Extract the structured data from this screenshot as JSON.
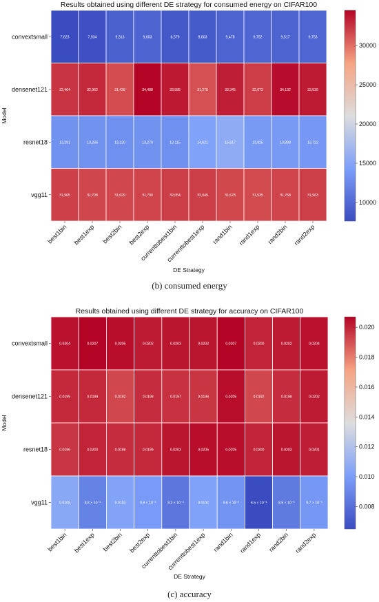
{
  "captions": [
    "(b) consumed energy",
    "(c) accuracy"
  ],
  "chart_data": [
    {
      "type": "heatmap",
      "title": "Results obtained using different DE strategy for consumed energy on CIFAR100",
      "xlabel": "DE Strategy",
      "ylabel": "Model",
      "x_categories": [
        "best1bin",
        "best1exp",
        "best2bin",
        "best2exp",
        "currenttobest1bin",
        "currenttobest1exp",
        "rand1bin",
        "rand1exp",
        "rand2bin",
        "rand2exp"
      ],
      "y_categories": [
        "convextsmall",
        "densenet121",
        "resnet18",
        "vgg11"
      ],
      "values": [
        [
          7623,
          7934,
          9313,
          9603,
          8579,
          8803,
          9478,
          9752,
          9517,
          9753
        ],
        [
          32464,
          32962,
          31428,
          34488,
          33585,
          31270,
          33345,
          32072,
          34132,
          33539
        ],
        [
          13291,
          13266,
          13120,
          13270,
          13115,
          14621,
          15617,
          13925,
          13898,
          13722
        ],
        [
          31965,
          31708,
          31629,
          31790,
          32054,
          32049,
          31678,
          31535,
          31768,
          31963
        ]
      ],
      "cell_labels": [
        [
          "7,623",
          "7,934",
          "9,313",
          "9,603",
          "8,579",
          "8,803",
          "9,478",
          "9,752",
          "9,517",
          "9,753"
        ],
        [
          "32,464",
          "32,962",
          "31,428",
          "34,488",
          "33,585",
          "31,270",
          "33,345",
          "32,072",
          "34,132",
          "33,539"
        ],
        [
          "13,291",
          "13,266",
          "13,120",
          "13,270",
          "13,115",
          "14,621",
          "15,617",
          "13,925",
          "13,898",
          "13,722"
        ],
        [
          "31,965",
          "31,708",
          "31,629",
          "31,790",
          "32,054",
          "32,049",
          "31,678",
          "31,535",
          "31,768",
          "31,963"
        ]
      ],
      "colorbar": {
        "range": [
          7623,
          34488
        ],
        "ticks": [
          10000,
          15000,
          20000,
          25000,
          30000
        ],
        "tick_labels": [
          "10000",
          "15000",
          "20000",
          "25000",
          "30000"
        ]
      },
      "colormap": "coolwarm"
    },
    {
      "type": "heatmap",
      "title": "Results obtained using different DE strategy for accuracy on CIFAR100",
      "xlabel": "DE Strategy",
      "ylabel": "Model",
      "x_categories": [
        "best1bin",
        "best1exp",
        "best2bin",
        "best2exp",
        "currenttobest1bin",
        "currenttobest1exp",
        "rand1bin",
        "rand1exp",
        "rand2bin",
        "rand2exp"
      ],
      "y_categories": [
        "convextsmall",
        "densenet121",
        "resnet18",
        "vgg11"
      ],
      "values": [
        [
          0.0204,
          0.0207,
          0.0205,
          0.0202,
          0.0203,
          0.0203,
          0.0207,
          0.02,
          0.0202,
          0.0204
        ],
        [
          0.0199,
          0.0199,
          0.0192,
          0.0198,
          0.0197,
          0.0196,
          0.0205,
          0.0192,
          0.0198,
          0.0202
        ],
        [
          0.0196,
          0.02,
          0.0198,
          0.0199,
          0.0203,
          0.0205,
          0.0205,
          0.02,
          0.0203,
          0.0201
        ],
        [
          0.0105,
          0.0088,
          0.0103,
          0.0099,
          0.0083,
          0.0102,
          0.0096,
          0.0065,
          0.0085,
          0.0097
        ]
      ],
      "cell_labels": [
        [
          "0.0204",
          "0.0207",
          "0.0205",
          "0.0202",
          "0.0203",
          "0.0203",
          "0.0207",
          "0.0200",
          "0.0202",
          "0.0204"
        ],
        [
          "0.0199",
          "0.0199",
          "0.0192",
          "0.0198",
          "0.0197",
          "0.0196",
          "0.0205",
          "0.0192",
          "0.0198",
          "0.0202"
        ],
        [
          "0.0196",
          "0.0200",
          "0.0198",
          "0.0199",
          "0.0203",
          "0.0205",
          "0.0205",
          "0.0200",
          "0.0203",
          "0.0201"
        ],
        [
          "0.0105",
          "8.8 × 10⁻³",
          "0.0103",
          "9.9 × 10⁻³",
          "8.3 × 10⁻³",
          "0.0102",
          "9.6 × 10⁻³",
          "6.5 × 10⁻³",
          "8.5 × 10⁻³",
          "9.7 × 10⁻³"
        ]
      ],
      "colorbar": {
        "range": [
          0.0065,
          0.0207
        ],
        "ticks": [
          0.008,
          0.01,
          0.012,
          0.014,
          0.016,
          0.018,
          0.02
        ],
        "tick_labels": [
          "0.008",
          "0.010",
          "0.012",
          "0.014",
          "0.016",
          "0.018",
          "0.020"
        ]
      },
      "colormap": "coolwarm"
    }
  ]
}
